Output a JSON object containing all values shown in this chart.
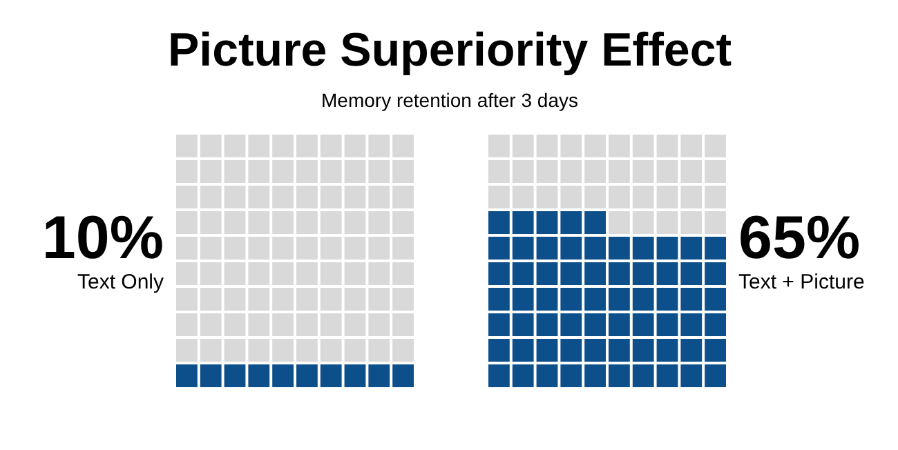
{
  "chart_data": {
    "type": "other",
    "title": "Picture Superiority Effect",
    "subtitle": "Memory retention after 3 days",
    "categories": [
      "Text Only",
      "Text + Picture"
    ],
    "values": [
      10,
      65
    ],
    "value_labels": [
      "10%",
      "65%"
    ],
    "colors": [
      "#0d4f8b",
      "#d9d9d9"
    ]
  }
}
